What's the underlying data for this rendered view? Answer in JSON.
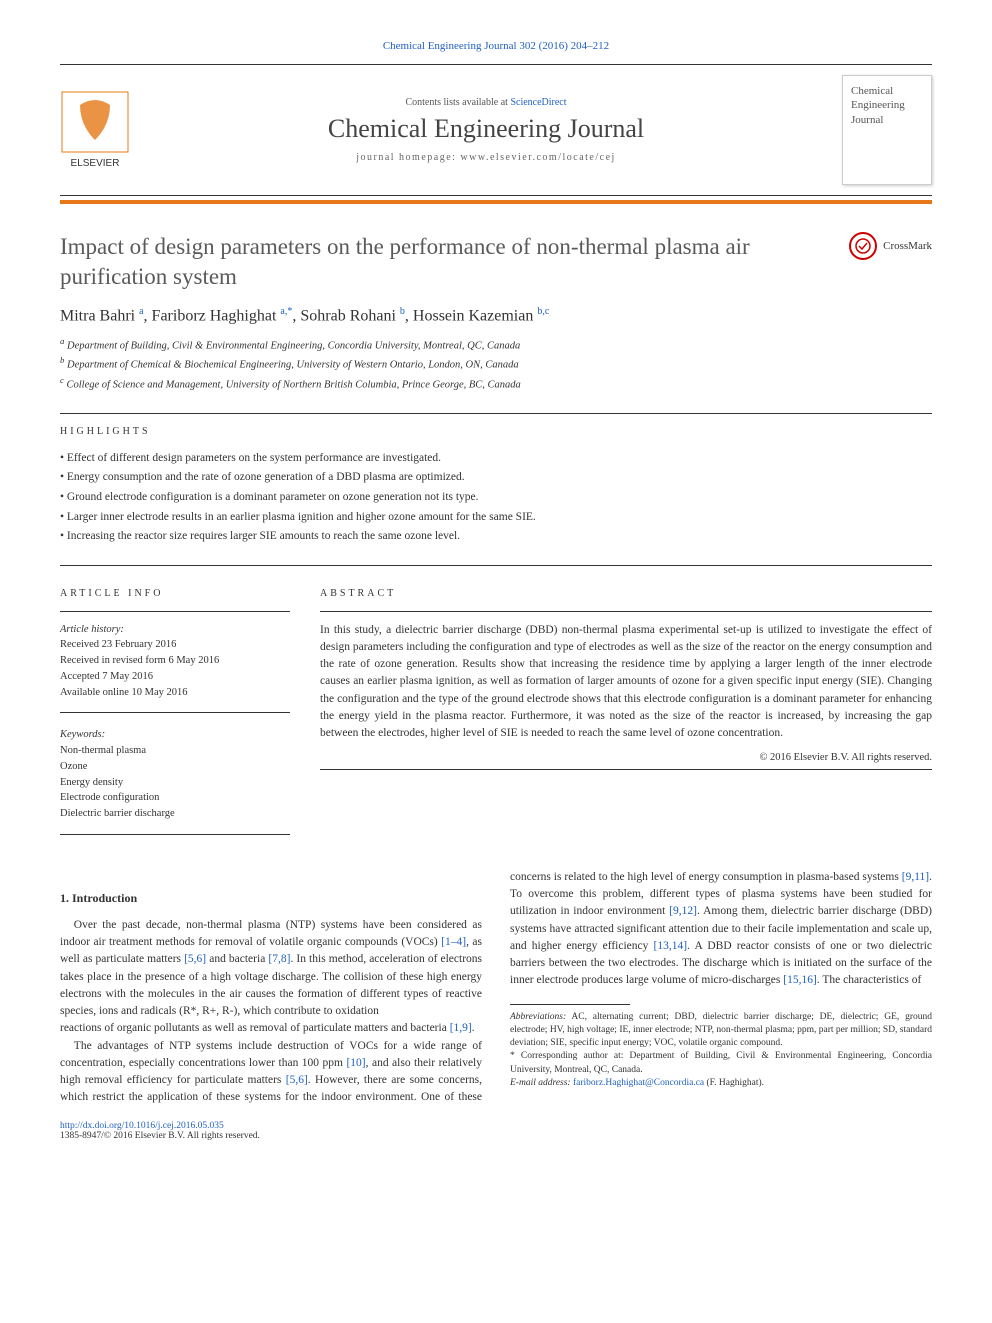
{
  "journal_ref": "Chemical Engineering Journal 302 (2016) 204–212",
  "header": {
    "contents_line_prefix": "Contents lists available at ",
    "contents_line_link": "ScienceDirect",
    "journal_name": "Chemical Engineering Journal",
    "homepage_prefix": "journal homepage: ",
    "homepage_url": "www.elsevier.com/locate/cej",
    "thumb_text": "Chemical Engineering Journal"
  },
  "colors": {
    "accent_orange": "#e67817",
    "link_blue": "#2060c0"
  },
  "title": "Impact of design parameters on the performance of non-thermal plasma air purification system",
  "crossmark_label": "CrossMark",
  "authors_html": "Mitra Bahri <sup>a</sup>, Fariborz Haghighat <sup>a,*</sup>, Sohrab Rohani <sup>b</sup>, Hossein Kazemian <sup>b,c</sup>",
  "affiliations": [
    "a Department of Building, Civil & Environmental Engineering, Concordia University, Montreal, QC, Canada",
    "b Department of Chemical & Biochemical Engineering, University of Western Ontario, London, ON, Canada",
    "c College of Science and Management, University of Northern British Columbia, Prince George, BC, Canada"
  ],
  "highlights_label": "HIGHLIGHTS",
  "highlights": [
    "Effect of different design parameters on the system performance are investigated.",
    "Energy consumption and the rate of ozone generation of a DBD plasma are optimized.",
    "Ground electrode configuration is a dominant parameter on ozone generation not its type.",
    "Larger inner electrode results in an earlier plasma ignition and higher ozone amount for the same SIE.",
    "Increasing the reactor size requires larger SIE amounts to reach the same ozone level."
  ],
  "article_info_label": "ARTICLE INFO",
  "abstract_label": "ABSTRACT",
  "history": {
    "label": "Article history:",
    "received": "Received 23 February 2016",
    "revised": "Received in revised form 6 May 2016",
    "accepted": "Accepted 7 May 2016",
    "online": "Available online 10 May 2016"
  },
  "keywords_label": "Keywords:",
  "keywords": [
    "Non-thermal plasma",
    "Ozone",
    "Energy density",
    "Electrode configuration",
    "Dielectric barrier discharge"
  ],
  "abstract": "In this study, a dielectric barrier discharge (DBD) non-thermal plasma experimental set-up is utilized to investigate the effect of design parameters including the configuration and type of electrodes as well as the size of the reactor on the energy consumption and the rate of ozone generation. Results show that increasing the residence time by applying a larger length of the inner electrode causes an earlier plasma ignition, as well as formation of larger amounts of ozone for a given specific input energy (SIE). Changing the configuration and the type of the ground electrode shows that this electrode configuration is a dominant parameter for enhancing the energy yield in the plasma reactor. Furthermore, it was noted as the size of the reactor is increased, by increasing the gap between the electrodes, higher level of SIE is needed to reach the same level of ozone concentration.",
  "copyright": "© 2016 Elsevier B.V. All rights reserved.",
  "intro_heading": "1. Introduction",
  "intro_paragraphs": [
    "Over the past decade, non-thermal plasma (NTP) systems have been considered as indoor air treatment methods for removal of volatile organic compounds (VOCs) [1–4], as well as particulate matters [5,6] and bacteria [7,8]. In this method, acceleration of electrons takes place in the presence of a high voltage discharge. The collision of these high energy electrons with the molecules in the air causes the formation of different types of reactive species, ions and radicals (R*, R+, R-), which contribute to oxidation",
    "reactions of organic pollutants as well as removal of particulate matters and bacteria [1,9].",
    "The advantages of NTP systems include destruction of VOCs for a wide range of concentration, especially concentrations lower than 100 ppm [10], and also their relatively high removal efficiency for particulate matters [5,6]. However, there are some concerns, which restrict the application of these systems for the indoor environment. One of these concerns is related to the high level of energy consumption in plasma-based systems [9,11]. To overcome this problem, different types of plasma systems have been studied for utilization in indoor environment [9,12]. Among them, dielectric barrier discharge (DBD) systems have attracted significant attention due to their facile implementation and scale up, and higher energy efficiency [13,14]. A DBD reactor consists of one or two dielectric barriers between the two electrodes. The discharge which is initiated on the surface of the inner electrode produces large volume of micro-discharges [15,16]. The characteristics of"
  ],
  "footnotes": {
    "abbrev_label": "Abbreviations:",
    "abbrev_text": " AC, alternating current; DBD, dielectric barrier discharge; DE, dielectric; GE, ground electrode; HV, high voltage; IE, inner electrode; NTP, non-thermal plasma; ppm, part per million; SD, standard deviation; SIE, specific input energy; VOC, volatile organic compound.",
    "corresp_marker": "* ",
    "corresp_text": "Corresponding author at: Department of Building, Civil & Environmental Engineering, Concordia University, Montreal, QC, Canada.",
    "email_label": "E-mail address:",
    "email": " fariborz.Haghighat@Concordia.ca ",
    "email_suffix": "(F. Haghighat)."
  },
  "doi": "http://dx.doi.org/10.1016/j.cej.2016.05.035",
  "issn_line": "1385-8947/© 2016 Elsevier B.V. All rights reserved."
}
